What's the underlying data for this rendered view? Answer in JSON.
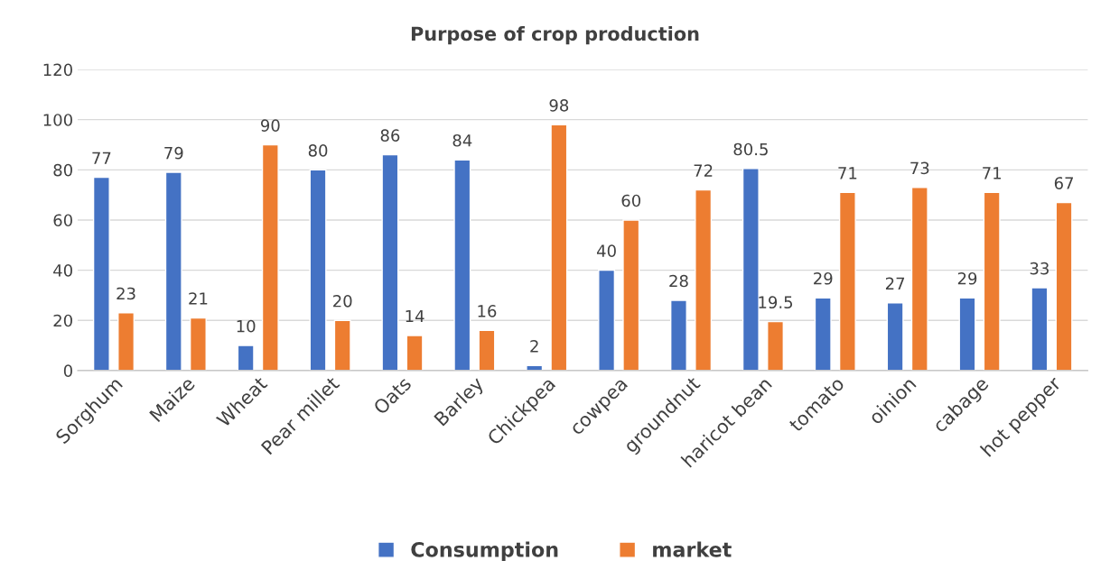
{
  "chart_data": {
    "type": "bar",
    "title": "Purpose of crop production",
    "categories": [
      "Sorghum",
      "Maize",
      "Wheat",
      "Pear millet",
      "Oats",
      "Barley",
      "Chickpea",
      "cowpea",
      "groundnut",
      "haricot bean",
      "tomato",
      "oinion",
      "cabage",
      "hot pepper"
    ],
    "series": [
      {
        "name": "Consumption",
        "color": "#4472c4",
        "values": [
          77,
          79,
          10,
          80,
          86,
          84,
          2,
          40,
          28,
          80.5,
          29,
          27,
          29,
          33
        ]
      },
      {
        "name": "market",
        "color": "#ed7d31",
        "values": [
          23,
          21,
          90,
          20,
          14,
          16,
          98,
          60,
          72,
          19.5,
          71,
          73,
          71,
          67
        ]
      }
    ],
    "ylim": [
      0,
      120
    ],
    "yticks": [
      0,
      20,
      40,
      60,
      80,
      100,
      120
    ],
    "grid": "y",
    "legend": "bottom",
    "data_labels": true
  }
}
